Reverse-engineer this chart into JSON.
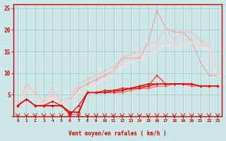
{
  "bg_color": "#cce8e8",
  "grid_color": "#aacccc",
  "xlabel": "Vent moyen/en rafales ( km/h )",
  "x": [
    0,
    1,
    2,
    3,
    4,
    5,
    6,
    7,
    8,
    9,
    10,
    11,
    12,
    13,
    14,
    15,
    16,
    17,
    18,
    19,
    20,
    21,
    22,
    23
  ],
  "series": [
    {
      "color": "#ff9999",
      "alpha": 1.0,
      "linewidth": 0.8,
      "marker": "o",
      "markersize": 1.8,
      "data": [
        2.0,
        6.5,
        4.5,
        3.0,
        5.0,
        2.5,
        3.5,
        6.5,
        7.5,
        8.5,
        9.5,
        10.5,
        13.5,
        13.5,
        13.5,
        17.0,
        24.5,
        20.5,
        19.5,
        19.5,
        17.5,
        12.5,
        9.5,
        9.5
      ]
    },
    {
      "color": "#ffbbbb",
      "alpha": 1.0,
      "linewidth": 0.8,
      "marker": "o",
      "markersize": 1.8,
      "data": [
        2.0,
        7.5,
        5.5,
        3.5,
        6.5,
        3.5,
        4.5,
        7.5,
        8.5,
        9.5,
        10.5,
        11.5,
        13.5,
        14.5,
        15.0,
        17.0,
        17.0,
        20.5,
        17.5,
        19.5,
        19.5,
        17.5,
        16.5,
        9.5
      ]
    },
    {
      "color": "#ffcccc",
      "alpha": 1.0,
      "linewidth": 0.8,
      "marker": "o",
      "markersize": 1.5,
      "data": [
        2.0,
        6.5,
        4.5,
        3.0,
        5.0,
        2.5,
        3.5,
        6.0,
        6.5,
        8.0,
        9.0,
        10.5,
        12.5,
        13.5,
        14.0,
        15.5,
        16.0,
        17.5,
        16.5,
        17.5,
        17.5,
        16.5,
        16.5,
        9.5
      ]
    },
    {
      "color": "#ffdddd",
      "alpha": 1.0,
      "linewidth": 0.8,
      "marker": "o",
      "markersize": 1.5,
      "data": [
        2.0,
        6.5,
        4.5,
        3.0,
        4.5,
        2.5,
        3.5,
        5.5,
        6.5,
        7.5,
        8.5,
        9.5,
        11.5,
        12.5,
        13.0,
        14.5,
        15.0,
        16.5,
        16.0,
        16.5,
        17.0,
        16.0,
        15.5,
        9.5
      ]
    },
    {
      "color": "#ff6666",
      "alpha": 1.0,
      "linewidth": 0.9,
      "marker": "D",
      "markersize": 2.0,
      "data": [
        2.5,
        4.0,
        2.5,
        2.5,
        2.5,
        2.5,
        0.5,
        0.5,
        5.5,
        5.5,
        5.5,
        5.5,
        5.5,
        6.0,
        6.5,
        6.5,
        7.0,
        7.0,
        7.5,
        7.5,
        7.0,
        7.0,
        7.0,
        7.0
      ]
    },
    {
      "color": "#ff3333",
      "alpha": 1.0,
      "linewidth": 0.9,
      "marker": "D",
      "markersize": 2.0,
      "data": [
        2.5,
        4.0,
        2.5,
        2.5,
        2.5,
        2.5,
        1.0,
        1.0,
        5.5,
        5.5,
        5.5,
        5.5,
        6.0,
        6.5,
        7.0,
        7.0,
        9.5,
        7.5,
        7.5,
        7.5,
        7.5,
        7.0,
        7.0,
        7.0
      ]
    },
    {
      "color": "#cc0000",
      "alpha": 1.0,
      "linewidth": 1.0,
      "marker": "D",
      "markersize": 2.0,
      "data": [
        2.5,
        4.0,
        2.5,
        2.5,
        2.5,
        2.5,
        1.0,
        1.0,
        5.5,
        5.5,
        5.5,
        6.0,
        6.0,
        6.5,
        7.0,
        7.5,
        7.5,
        7.5,
        7.5,
        7.5,
        7.5,
        7.0,
        7.0,
        7.0
      ]
    },
    {
      "color": "#ff0000",
      "alpha": 1.0,
      "linewidth": 0.9,
      "marker": "D",
      "markersize": 2.0,
      "data": [
        2.5,
        4.0,
        2.5,
        2.5,
        3.5,
        2.5,
        0.5,
        2.5,
        5.5,
        5.5,
        6.0,
        6.0,
        6.5,
        6.5,
        6.5,
        7.0,
        7.5,
        7.5,
        7.5,
        7.5,
        7.5,
        7.0,
        7.0,
        7.0
      ]
    }
  ],
  "ylim": [
    0,
    26
  ],
  "yticks": [
    0,
    5,
    10,
    15,
    20,
    25
  ],
  "xtick_labels": [
    "0",
    "1",
    "2",
    "3",
    "4",
    "5",
    "6",
    "7",
    "8",
    "9",
    "10",
    "11",
    "12",
    "13",
    "14",
    "15",
    "16",
    "17",
    "18",
    "19",
    "20",
    "21",
    "22",
    "23"
  ],
  "axis_color": "#cc0000",
  "tick_color": "#cc0000",
  "label_color": "#cc0000"
}
